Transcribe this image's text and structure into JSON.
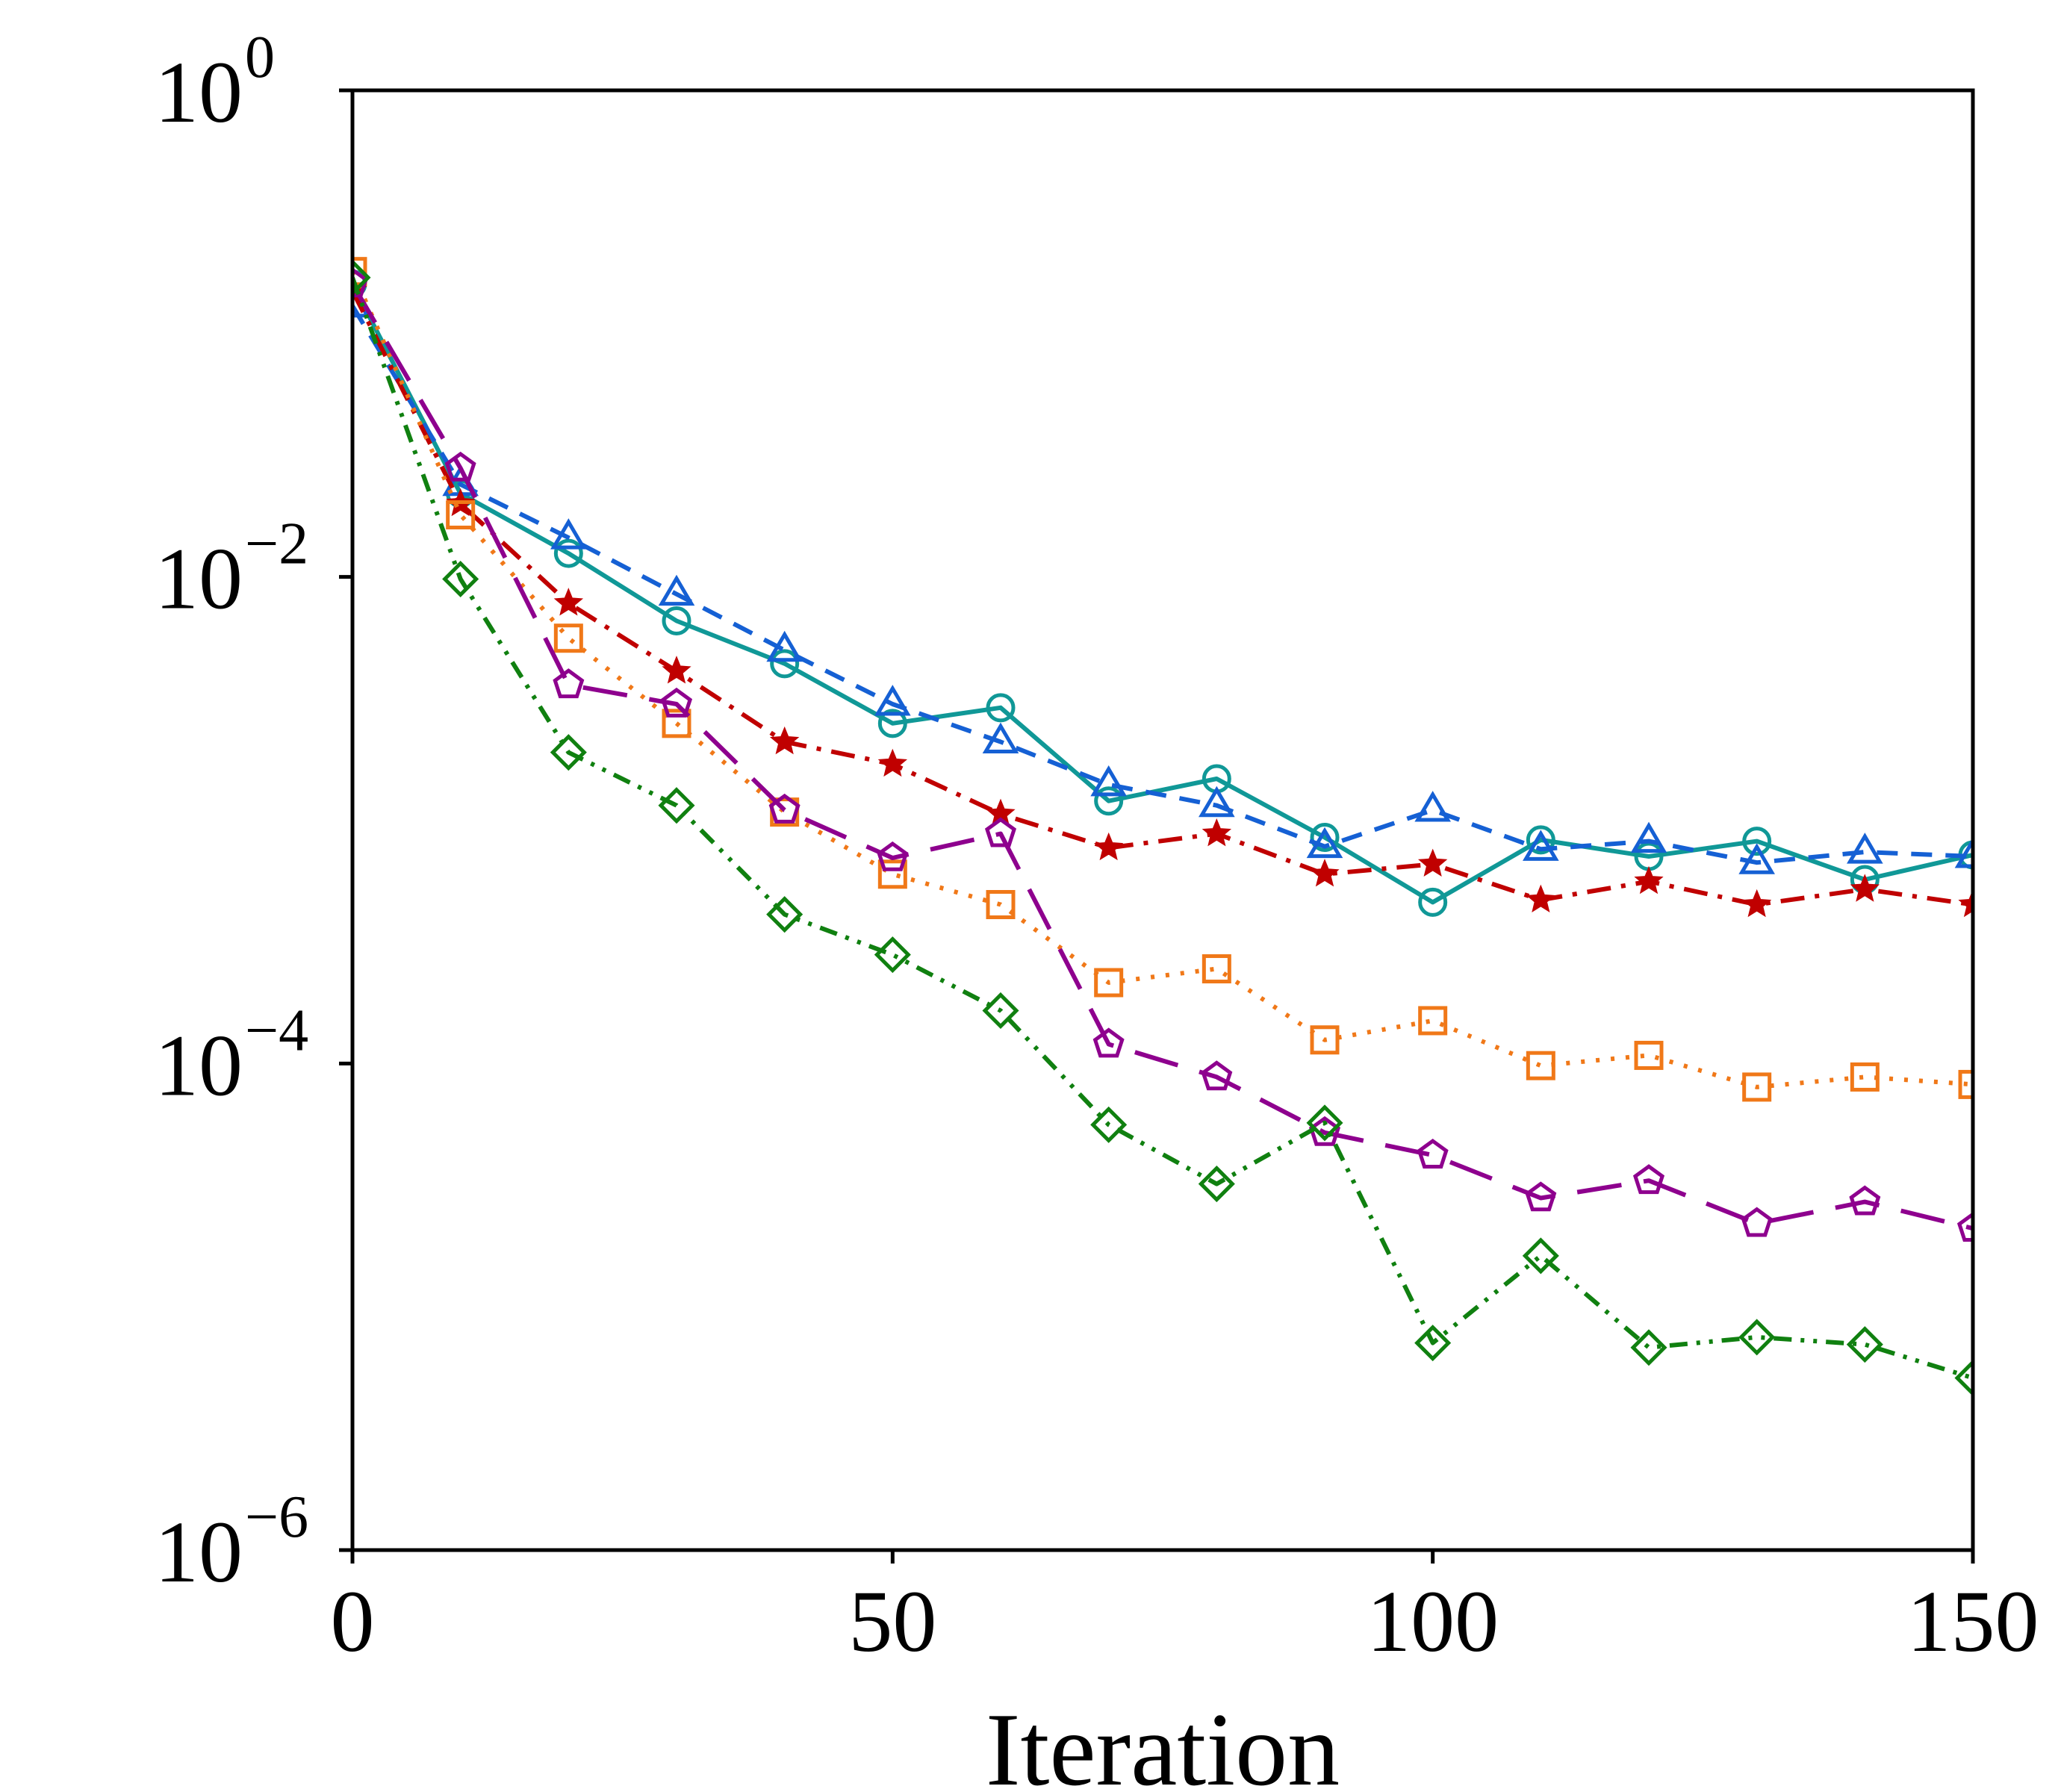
{
  "chart_data": {
    "type": "line",
    "title": "",
    "xlabel": "Iteration",
    "ylabel": "",
    "xlim": [
      0,
      150
    ],
    "ylim": [
      1e-06,
      1
    ],
    "yscale": "log",
    "grid": false,
    "x_ticks": [
      {
        "value": 0,
        "label": "0"
      },
      {
        "value": 50,
        "label": "50"
      },
      {
        "value": 100,
        "label": "100"
      },
      {
        "value": 150,
        "label": "150"
      }
    ],
    "y_ticks": [
      {
        "value": 1e-06,
        "base": "10",
        "exp": "−6"
      },
      {
        "value": 0.0001,
        "base": "10",
        "exp": "−4"
      },
      {
        "value": 0.01,
        "base": "10",
        "exp": "−2"
      },
      {
        "value": 1,
        "base": "10",
        "exp": "0"
      }
    ],
    "x": [
      0,
      10,
      20,
      30,
      40,
      50,
      60,
      70,
      80,
      90,
      100,
      110,
      120,
      130,
      140,
      150
    ],
    "series": [
      {
        "name": "circle-solid-teal",
        "color": "#109897",
        "dash": "",
        "marker": "circle",
        "values": [
          0.16,
          0.022,
          0.0125,
          0.0066,
          0.0044,
          0.0025,
          0.0029,
          0.0012,
          0.00148,
          0.00085,
          0.00046,
          0.00083,
          0.00071,
          0.00082,
          0.00057,
          0.00072
        ]
      },
      {
        "name": "triangle-dashed-blue",
        "color": "#1560d4",
        "dash": "28,18",
        "marker": "triangle",
        "values": [
          0.13,
          0.024,
          0.0145,
          0.0085,
          0.005,
          0.003,
          0.0021,
          0.0014,
          0.00115,
          0.00078,
          0.0011,
          0.00076,
          0.00082,
          0.00067,
          0.00074,
          0.00071
        ]
      },
      {
        "name": "star-dashdot-red",
        "color": "#c00000",
        "dash": "32,14,6,14",
        "marker": "star",
        "values": [
          0.15,
          0.02,
          0.0078,
          0.0041,
          0.0021,
          0.0017,
          0.00106,
          0.00077,
          0.00088,
          0.0006,
          0.00066,
          0.00047,
          0.00056,
          0.00045,
          0.00052,
          0.00045
        ]
      },
      {
        "name": "square-dotted-orange",
        "color": "#f07818",
        "dash": "5,15",
        "marker": "square",
        "values": [
          0.18,
          0.018,
          0.0056,
          0.0025,
          0.00108,
          0.0006,
          0.00045,
          0.000215,
          0.000245,
          0.000125,
          0.00015,
          9.8e-05,
          0.000108,
          8e-05,
          8.8e-05,
          8.2e-05
        ]
      },
      {
        "name": "pentagon-longdash-purple",
        "color": "#8e008e",
        "dash": "60,30",
        "marker": "pentagon",
        "values": [
          0.16,
          0.028,
          0.0036,
          0.003,
          0.0011,
          0.0007,
          0.00088,
          0.00012,
          8.8e-05,
          5.2e-05,
          4.2e-05,
          2.8e-05,
          3.3e-05,
          2.2e-05,
          2.7e-05,
          2.1e-05
        ]
      },
      {
        "name": "diamond-dashdotdot-green",
        "color": "#108010",
        "dash": "24,12,5,12,5,12",
        "marker": "diamond",
        "values": [
          0.17,
          0.0098,
          0.0019,
          0.00115,
          0.00041,
          0.00028,
          0.000165,
          5.6e-05,
          3.2e-05,
          5.7e-05,
          7.1e-06,
          1.62e-05,
          6.8e-06,
          7.5e-06,
          7e-06,
          5.1e-06
        ]
      }
    ]
  }
}
